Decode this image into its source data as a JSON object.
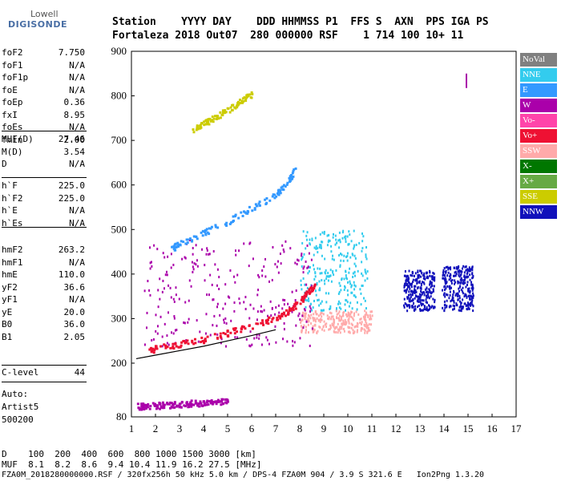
{
  "logo": {
    "top": "Lowell",
    "bottom": "DIGISONDE"
  },
  "header": {
    "line1": "Station    YYYY DAY    DDD HHMMSS P1  FFS S  AXN  PPS IGA PS",
    "line2": "Fortaleza 2018 Out07  280 000000 RSF    1 714 100 10+ 11"
  },
  "params_group1": [
    {
      "name": "foF2",
      "value": "7.750"
    },
    {
      "name": "foF1",
      "value": "N/A"
    },
    {
      "name": "foF1p",
      "value": "N/A"
    },
    {
      "name": "foE",
      "value": "N/A"
    },
    {
      "name": "foEp",
      "value": "0.36"
    },
    {
      "name": "fxI",
      "value": "8.95"
    },
    {
      "name": "foEs",
      "value": "N/A"
    },
    {
      "name": "fmin",
      "value": "2.00"
    }
  ],
  "params_group2": [
    {
      "name": "MUF(D)",
      "value": "27.46"
    },
    {
      "name": "M(D)",
      "value": "3.54"
    },
    {
      "name": "D",
      "value": "N/A"
    }
  ],
  "params_group3": [
    {
      "name": "h`F",
      "value": "225.0"
    },
    {
      "name": "h`F2",
      "value": "225.0"
    },
    {
      "name": "h`E",
      "value": "N/A"
    },
    {
      "name": "h`Es",
      "value": "N/A"
    }
  ],
  "params_group4": [
    {
      "name": "hmF2",
      "value": "263.2"
    },
    {
      "name": "hmF1",
      "value": "N/A"
    },
    {
      "name": "hmE",
      "value": "110.0"
    },
    {
      "name": "yF2",
      "value": "36.6"
    },
    {
      "name": "yF1",
      "value": "N/A"
    },
    {
      "name": "yE",
      "value": "20.0"
    },
    {
      "name": "B0",
      "value": "36.0"
    },
    {
      "name": "B1",
      "value": "2.05"
    }
  ],
  "params_group5": [
    {
      "name": "C-level",
      "value": "44"
    }
  ],
  "auto": {
    "line1": "Auto:",
    "line2": "Artist5",
    "line3": "500200"
  },
  "legend": [
    {
      "label": "NoVal",
      "color": "#808080"
    },
    {
      "label": "NNE",
      "color": "#33ccee"
    },
    {
      "label": "E",
      "color": "#3399ff"
    },
    {
      "label": "W",
      "color": "#aa00aa"
    },
    {
      "label": "Vo-",
      "color": "#ff44aa"
    },
    {
      "label": "Vo+",
      "color": "#ee1133"
    },
    {
      "label": "SSW",
      "color": "#ffaaaa"
    },
    {
      "label": "X-",
      "color": "#007700"
    },
    {
      "label": "X+",
      "color": "#66aa44"
    },
    {
      "label": "SSE",
      "color": "#cccc00"
    },
    {
      "label": "NNW",
      "color": "#1111bb"
    }
  ],
  "bottom": {
    "d_row": "D    100  200  400  600  800 1000 1500 3000 [km]",
    "muf_row": "MUF  8.1  8.2  8.6  9.4 10.4 11.9 16.2 27.5 [MHz]",
    "file_row": "FZA0M_2018280000000.RSF / 320fx256h 50 kHz 5.0 km / DPS-4 FZA0M 904 / 3.9 S 321.6 E   Ion2Png 1.3.20"
  },
  "chart_data": {
    "type": "scatter",
    "xlabel": "",
    "ylabel": "",
    "xlim": [
      1,
      17
    ],
    "ylim": [
      80,
      900
    ],
    "x_ticks": [
      "1",
      "2",
      "3",
      "4",
      "5",
      "6",
      "7",
      "8",
      "9",
      "10",
      "11",
      "12",
      "13",
      "14",
      "15",
      "16",
      "17"
    ],
    "y_ticks": [
      "80",
      "200",
      "300",
      "400",
      "500",
      "600",
      "700",
      "800",
      "900"
    ],
    "series_colors": {
      "NNE": "#33ccee",
      "E": "#3399ff",
      "W": "#aa00aa",
      "Vo-": "#ff44aa",
      "Vo+": "#ee1133",
      "SSW": "#ffaaaa",
      "X-": "#007700",
      "X+": "#66aa44",
      "SSE": "#cccc00",
      "NNW": "#1111bb"
    },
    "traces": [
      {
        "name": "F2 O-trace",
        "color": "#ee1133",
        "points": [
          [
            1.7,
            230
          ],
          [
            2,
            235
          ],
          [
            3,
            245
          ],
          [
            4,
            255
          ],
          [
            5,
            270
          ],
          [
            6,
            285
          ],
          [
            7,
            305
          ],
          [
            7.5,
            320
          ],
          [
            8,
            340
          ],
          [
            8.3,
            360
          ],
          [
            8.6,
            380
          ]
        ]
      },
      {
        "name": "F2 2nd hop",
        "color": "#3399ff",
        "points": [
          [
            2.5,
            455
          ],
          [
            3,
            470
          ],
          [
            4,
            495
          ],
          [
            5,
            520
          ],
          [
            6,
            550
          ],
          [
            7,
            580
          ],
          [
            7.5,
            610
          ],
          [
            7.8,
            640
          ]
        ]
      },
      {
        "name": "F2 3rd hop",
        "color": "#cccc00",
        "points": [
          [
            3.5,
            725
          ],
          [
            4,
            740
          ],
          [
            4.5,
            755
          ],
          [
            5,
            770
          ],
          [
            5.5,
            790
          ],
          [
            6,
            805
          ]
        ]
      },
      {
        "name": "E/Es trace",
        "color": "#aa00aa",
        "points": [
          [
            1.2,
            105
          ],
          [
            1.5,
            105
          ],
          [
            2,
            107
          ],
          [
            2.5,
            108
          ],
          [
            3,
            110
          ],
          [
            3.5,
            112
          ],
          [
            4,
            113
          ],
          [
            4.5,
            115
          ],
          [
            5,
            115
          ]
        ]
      },
      {
        "name": "Profile",
        "color": "#000000",
        "points": [
          [
            1.2,
            210
          ],
          [
            2,
            218
          ],
          [
            3,
            228
          ],
          [
            4,
            238
          ],
          [
            5,
            250
          ],
          [
            6,
            262
          ],
          [
            7,
            275
          ]
        ]
      }
    ],
    "clusters": [
      {
        "name": "spread F cyan",
        "color": "#33ccee",
        "x": [
          8.0,
          10.8
        ],
        "y": [
          320,
          500
        ]
      },
      {
        "name": "spread pink",
        "color": "#ffaaaa",
        "x": [
          8.0,
          11.0
        ],
        "y": [
          270,
          320
        ]
      },
      {
        "name": "W cloud",
        "color": "#aa00aa",
        "x": [
          1.5,
          8.5
        ],
        "y": [
          240,
          480
        ]
      },
      {
        "name": "NNW blob 1",
        "color": "#1111bb",
        "x": [
          12.3,
          13.6
        ],
        "y": [
          320,
          410
        ]
      },
      {
        "name": "NNW blob 2",
        "color": "#1111bb",
        "x": [
          13.9,
          15.2
        ],
        "y": [
          320,
          420
        ]
      }
    ]
  }
}
